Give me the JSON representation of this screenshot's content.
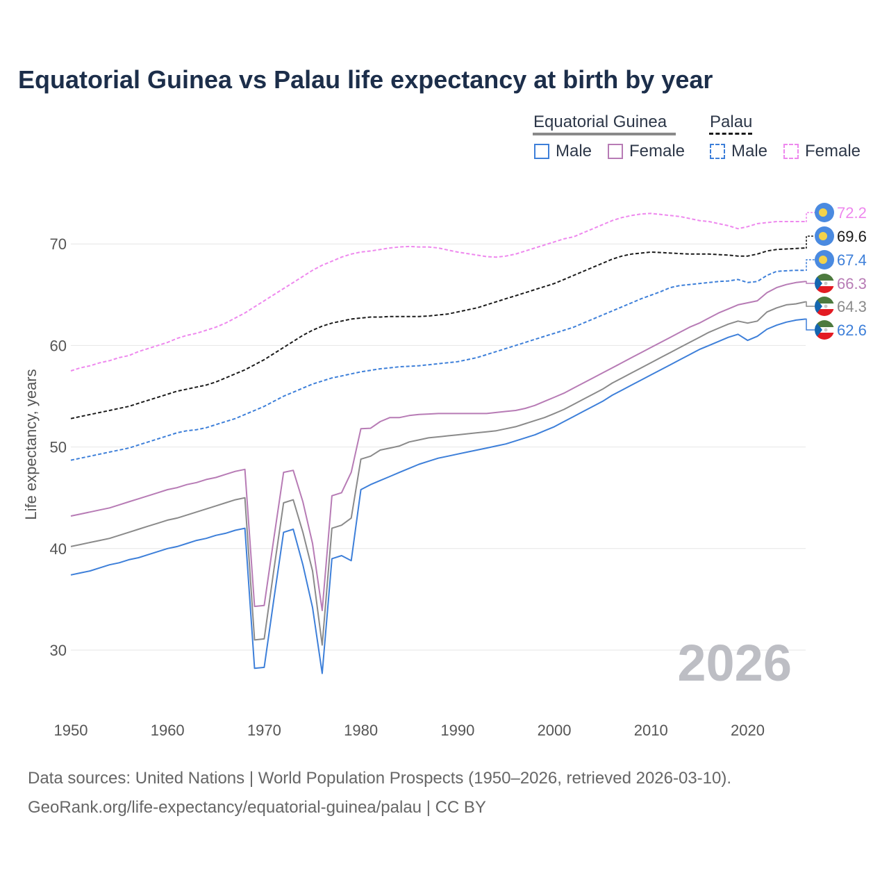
{
  "title": "Equatorial Guinea vs Palau life expectancy at birth by year",
  "year_label": "2026",
  "legend": {
    "group1": "Equatorial Guinea",
    "group2": "Palau",
    "male": "Male",
    "female": "Female"
  },
  "sources": {
    "line1": "Data sources: United Nations | World Population Prospects (1950–2026, retrieved 2026-03-10).",
    "line2": "GeoRank.org/life-expectancy/equatorial-guinea/palau | CC BY"
  },
  "colors": {
    "title": "#1c2e4a",
    "male": "#3d7fd9",
    "female": "#b77bb5",
    "total_eg": "#8a8a8a",
    "total_palau": "#1a1a1a",
    "palau_female": "#ee88ee",
    "grid": "#e6e6e6",
    "year": "#bdbec4",
    "flag_palau_bg": "#4a8ae0",
    "flag_palau_moon": "#f3d24a",
    "flag_eg_green": "#4d7a3e",
    "flag_eg_red": "#e31b23",
    "flag_eg_blue": "#1466b0"
  },
  "chart_data": {
    "type": "line",
    "title": "Equatorial Guinea vs Palau life expectancy at birth by year",
    "xlabel": "",
    "ylabel": "Life expectancy, years",
    "xlim": [
      1950,
      2026
    ],
    "ylim": [
      25,
      75
    ],
    "x_ticks": [
      1950,
      1960,
      1970,
      1980,
      1990,
      2000,
      2010,
      2020
    ],
    "y_ticks": [
      30,
      40,
      50,
      60,
      70
    ],
    "grid": true,
    "x": [
      1950,
      1951,
      1952,
      1953,
      1954,
      1955,
      1956,
      1957,
      1958,
      1959,
      1960,
      1961,
      1962,
      1963,
      1964,
      1965,
      1966,
      1967,
      1968,
      1969,
      1970,
      1971,
      1972,
      1973,
      1974,
      1975,
      1976,
      1977,
      1978,
      1979,
      1980,
      1981,
      1982,
      1983,
      1984,
      1985,
      1986,
      1987,
      1988,
      1989,
      1990,
      1991,
      1992,
      1993,
      1994,
      1995,
      1996,
      1997,
      1998,
      1999,
      2000,
      2001,
      2002,
      2003,
      2004,
      2005,
      2006,
      2007,
      2008,
      2009,
      2010,
      2011,
      2012,
      2013,
      2014,
      2015,
      2016,
      2017,
      2018,
      2019,
      2020,
      2021,
      2022,
      2023,
      2024,
      2025,
      2026
    ],
    "series": [
      {
        "name": "Palau Female",
        "country": "Palau",
        "sex": "Female",
        "style": "dashed",
        "label": "72.2",
        "values": [
          57.5,
          57.8,
          58.0,
          58.3,
          58.5,
          58.8,
          59.0,
          59.4,
          59.7,
          60.0,
          60.3,
          60.7,
          61.0,
          61.2,
          61.5,
          61.8,
          62.2,
          62.7,
          63.2,
          63.8,
          64.4,
          65.0,
          65.6,
          66.2,
          66.8,
          67.4,
          67.9,
          68.3,
          68.7,
          69.0,
          69.2,
          69.3,
          69.45,
          69.6,
          69.7,
          69.75,
          69.7,
          69.7,
          69.6,
          69.4,
          69.2,
          69.05,
          68.9,
          68.75,
          68.7,
          68.8,
          69.0,
          69.3,
          69.6,
          69.9,
          70.2,
          70.5,
          70.7,
          71.1,
          71.5,
          71.9,
          72.3,
          72.6,
          72.8,
          72.95,
          73.0,
          72.9,
          72.8,
          72.7,
          72.5,
          72.3,
          72.2,
          72.0,
          71.8,
          71.5,
          71.7,
          72.0,
          72.1,
          72.2,
          72.2,
          72.2,
          72.2
        ]
      },
      {
        "name": "Palau",
        "country": "Palau",
        "sex": "Total",
        "style": "dashed",
        "label": "69.6",
        "values": [
          52.8,
          53.0,
          53.2,
          53.4,
          53.6,
          53.8,
          54.0,
          54.3,
          54.6,
          54.9,
          55.2,
          55.5,
          55.7,
          55.9,
          56.1,
          56.4,
          56.8,
          57.2,
          57.6,
          58.1,
          58.6,
          59.2,
          59.8,
          60.4,
          61.0,
          61.5,
          61.9,
          62.2,
          62.4,
          62.6,
          62.7,
          62.8,
          62.8,
          62.85,
          62.85,
          62.85,
          62.85,
          62.9,
          63.0,
          63.1,
          63.3,
          63.5,
          63.7,
          64.0,
          64.3,
          64.6,
          64.9,
          65.2,
          65.5,
          65.8,
          66.1,
          66.5,
          66.9,
          67.3,
          67.7,
          68.1,
          68.5,
          68.8,
          69.0,
          69.1,
          69.2,
          69.15,
          69.1,
          69.05,
          69.0,
          69.0,
          69.0,
          68.95,
          68.9,
          68.8,
          68.8,
          69.0,
          69.3,
          69.45,
          69.5,
          69.55,
          69.6
        ]
      },
      {
        "name": "Palau Male",
        "country": "Palau",
        "sex": "Male",
        "style": "dashed",
        "label": "67.4",
        "values": [
          48.7,
          48.9,
          49.1,
          49.3,
          49.5,
          49.7,
          49.9,
          50.2,
          50.5,
          50.8,
          51.1,
          51.4,
          51.6,
          51.7,
          51.9,
          52.2,
          52.5,
          52.8,
          53.2,
          53.6,
          54.0,
          54.5,
          55.0,
          55.4,
          55.8,
          56.2,
          56.5,
          56.8,
          57.0,
          57.2,
          57.4,
          57.55,
          57.7,
          57.8,
          57.9,
          57.95,
          58.0,
          58.1,
          58.2,
          58.3,
          58.4,
          58.6,
          58.8,
          59.1,
          59.4,
          59.7,
          60.0,
          60.3,
          60.6,
          60.9,
          61.2,
          61.5,
          61.8,
          62.2,
          62.6,
          63.0,
          63.4,
          63.8,
          64.2,
          64.6,
          64.95,
          65.3,
          65.7,
          65.9,
          66.0,
          66.1,
          66.2,
          66.3,
          66.35,
          66.5,
          66.2,
          66.3,
          66.9,
          67.3,
          67.35,
          67.4,
          67.4
        ]
      },
      {
        "name": "Equatorial Guinea Female",
        "country": "Equatorial Guinea",
        "sex": "Female",
        "style": "solid",
        "label": "66.3",
        "values": [
          43.2,
          43.4,
          43.6,
          43.8,
          44.0,
          44.3,
          44.6,
          44.9,
          45.2,
          45.5,
          45.8,
          46.0,
          46.3,
          46.5,
          46.8,
          47.0,
          47.3,
          47.6,
          47.8,
          34.3,
          34.4,
          41.0,
          47.5,
          47.7,
          44.6,
          40.5,
          33.9,
          45.2,
          45.5,
          47.5,
          51.8,
          51.85,
          52.5,
          52.9,
          52.9,
          53.1,
          53.2,
          53.25,
          53.3,
          53.3,
          53.3,
          53.3,
          53.3,
          53.3,
          53.4,
          53.5,
          53.6,
          53.8,
          54.1,
          54.5,
          54.9,
          55.3,
          55.8,
          56.3,
          56.8,
          57.3,
          57.8,
          58.3,
          58.8,
          59.3,
          59.8,
          60.3,
          60.8,
          61.3,
          61.8,
          62.2,
          62.7,
          63.2,
          63.6,
          64.0,
          64.2,
          64.4,
          65.2,
          65.7,
          66.0,
          66.2,
          66.3
        ]
      },
      {
        "name": "Equatorial Guinea",
        "country": "Equatorial Guinea",
        "sex": "Total",
        "style": "solid",
        "label": "64.3",
        "values": [
          40.2,
          40.4,
          40.6,
          40.8,
          41.0,
          41.3,
          41.6,
          41.9,
          42.2,
          42.5,
          42.8,
          43.0,
          43.3,
          43.6,
          43.9,
          44.2,
          44.5,
          44.8,
          45.0,
          31.0,
          31.1,
          37.9,
          44.5,
          44.8,
          41.6,
          37.8,
          30.5,
          42.0,
          42.3,
          43.0,
          48.8,
          49.1,
          49.7,
          49.9,
          50.1,
          50.5,
          50.7,
          50.9,
          51.0,
          51.1,
          51.2,
          51.3,
          51.4,
          51.5,
          51.6,
          51.8,
          52.0,
          52.3,
          52.6,
          52.9,
          53.3,
          53.7,
          54.2,
          54.7,
          55.2,
          55.7,
          56.3,
          56.8,
          57.3,
          57.8,
          58.3,
          58.8,
          59.3,
          59.8,
          60.3,
          60.8,
          61.3,
          61.7,
          62.1,
          62.4,
          62.2,
          62.4,
          63.3,
          63.7,
          64.0,
          64.1,
          64.3
        ]
      },
      {
        "name": "Equatorial Guinea Male",
        "country": "Equatorial Guinea",
        "sex": "Male",
        "style": "solid",
        "label": "62.6",
        "values": [
          37.4,
          37.6,
          37.8,
          38.1,
          38.4,
          38.6,
          38.9,
          39.1,
          39.4,
          39.7,
          40.0,
          40.2,
          40.5,
          40.8,
          41.0,
          41.3,
          41.5,
          41.8,
          42.0,
          28.2,
          28.3,
          35.0,
          41.6,
          41.9,
          38.4,
          34.2,
          27.7,
          39.0,
          39.3,
          38.8,
          45.8,
          46.3,
          46.7,
          47.1,
          47.5,
          47.9,
          48.3,
          48.6,
          48.9,
          49.1,
          49.3,
          49.5,
          49.7,
          49.9,
          50.1,
          50.3,
          50.6,
          50.9,
          51.2,
          51.6,
          52.0,
          52.5,
          53.0,
          53.5,
          54.0,
          54.5,
          55.1,
          55.6,
          56.1,
          56.6,
          57.1,
          57.6,
          58.1,
          58.6,
          59.1,
          59.6,
          60.0,
          60.4,
          60.8,
          61.1,
          60.5,
          60.9,
          61.6,
          62.0,
          62.3,
          62.5,
          62.6
        ]
      }
    ]
  }
}
